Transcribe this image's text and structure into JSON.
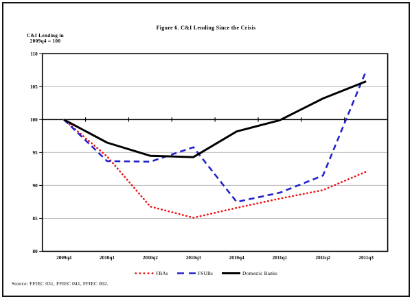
{
  "chart_data": {
    "type": "line",
    "title": "Figure 6. C&I Lending Since the Crisis",
    "y_axis_title_lines": [
      "C&I Lending in",
      "2009q4 = 100"
    ],
    "categories": [
      "2009q4",
      "2010q1",
      "2010q2",
      "2010q3",
      "2010q4",
      "2011q1",
      "2011q2",
      "2011q3"
    ],
    "series": [
      {
        "name": "FBAs",
        "style": "dotted",
        "color": "#ee1111",
        "values": [
          100,
          94.4,
          86.8,
          85.1,
          86.6,
          88.0,
          89.3,
          92.1
        ]
      },
      {
        "name": "FSUBs",
        "style": "dashed",
        "color": "#2222cc",
        "values": [
          100,
          93.7,
          93.6,
          95.8,
          87.5,
          88.9,
          91.5,
          107.4
        ]
      },
      {
        "name": "Domestic Banks",
        "style": "solid",
        "color": "#000000",
        "values": [
          100,
          96.5,
          94.5,
          94.3,
          98.2,
          99.9,
          103.2,
          105.8
        ]
      }
    ],
    "ylim": [
      80,
      110
    ],
    "yticks": [
      80,
      85,
      90,
      95,
      100,
      105,
      110
    ],
    "axis_cross_value": 100,
    "grid": true,
    "legend_position": "bottom"
  },
  "footer": {
    "source": "Source: FFIEC 031, FFIEC 041, FFIEC 002."
  },
  "colors": {
    "gridline": "#bdbdbd",
    "axis": "#000000",
    "background": "#ffffff"
  }
}
